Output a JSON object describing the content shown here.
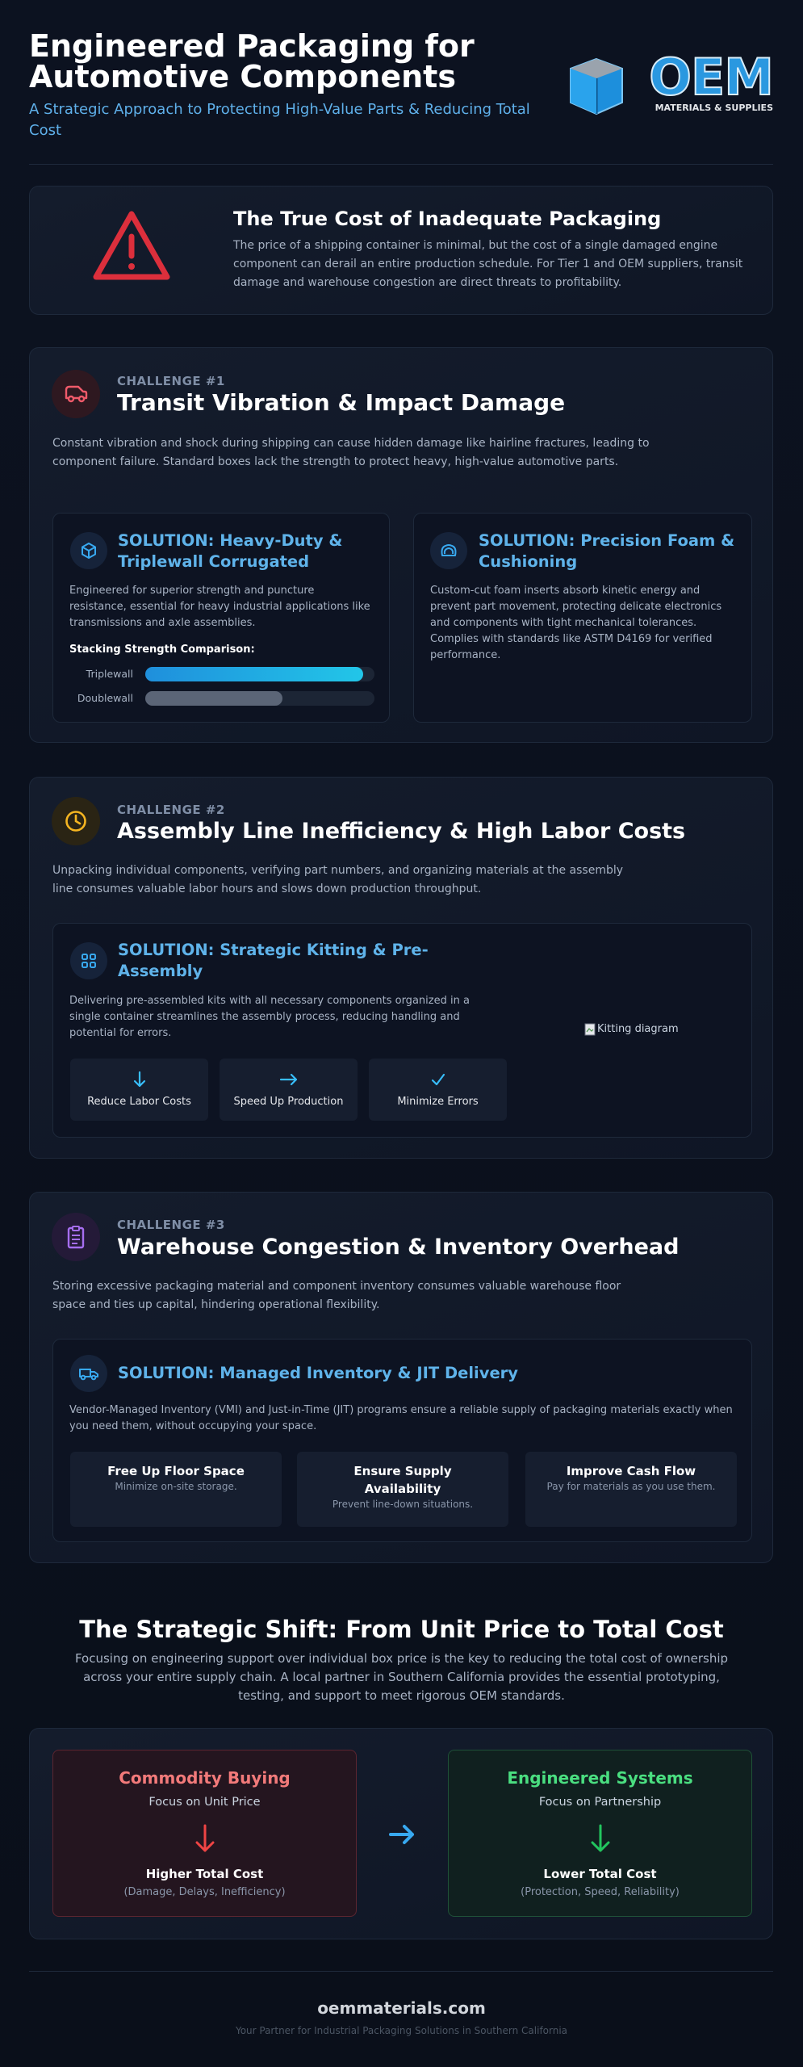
{
  "header": {
    "title": "Engineered Packaging for Automotive Components",
    "subtitle": "A Strategic Approach to Protecting High-Value Parts & Reducing Total Cost",
    "logo": {
      "name": "OEM",
      "tagline": "MATERIALS & SUPPLIES"
    }
  },
  "intro": {
    "title": "The True Cost of Inadequate Packaging",
    "text": "The price of a shipping container is minimal, but the cost of a single damaged engine component can derail an entire production schedule. For Tier 1 and OEM suppliers, transit damage and warehouse congestion are direct threats to profitability."
  },
  "challenges": [
    {
      "label": "CHALLENGE #1",
      "title": "Transit Vibration & Impact Damage",
      "text": "Constant vibration and shock during shipping can cause hidden damage like hairline fractures, leading to component failure. Standard boxes lack the strength to protect heavy, high-value automotive parts.",
      "solutions": [
        {
          "title": "SOLUTION: Heavy-Duty & Triplewall Corrugated",
          "text": "Engineered for superior strength and puncture resistance, essential for heavy industrial applications like transmissions and axle assemblies.",
          "comparison": {
            "title": "Stacking Strength Comparison:",
            "categories": [
              "Triplewall",
              "Doublewall"
            ],
            "values": [
              95,
              60
            ],
            "xlim": [
              0,
              100
            ]
          }
        },
        {
          "title": "SOLUTION: Precision Foam & Cushioning",
          "text": "Custom-cut foam inserts absorb kinetic energy and prevent part movement, protecting delicate electronics and components with tight mechanical tolerances. Complies with standards like ASTM D4169 for verified performance."
        }
      ]
    },
    {
      "label": "CHALLENGE #2",
      "title": "Assembly Line Inefficiency & High Labor Costs",
      "text": "Unpacking individual components, verifying part numbers, and organizing materials at the assembly line consumes valuable labor hours and slows down production throughput.",
      "solutions": [
        {
          "title": "SOLUTION: Strategic Kitting & Pre-Assembly",
          "text": "Delivering pre-assembled kits with all necessary components organized in a single container streamlines the assembly process, reducing handling and potential for errors.",
          "benefits": [
            "Reduce Labor Costs",
            "Speed Up Production",
            "Minimize Errors"
          ],
          "image_alt": "Kitting diagram"
        }
      ]
    },
    {
      "label": "CHALLENGE #3",
      "title": "Warehouse Congestion & Inventory Overhead",
      "text": "Storing excessive packaging material and component inventory consumes valuable warehouse floor space and ties up capital, hindering operational flexibility.",
      "solutions": [
        {
          "title": "SOLUTION: Managed Inventory & JIT Delivery",
          "text": "Vendor-Managed Inventory (VMI) and Just-in-Time (JIT) programs ensure a reliable supply of packaging materials exactly when you need them, without occupying your space.",
          "benefits": [
            {
              "title": "Free Up Floor Space",
              "text": "Minimize on-site storage."
            },
            {
              "title": "Ensure Supply Availability",
              "text": "Prevent line-down situations."
            },
            {
              "title": "Improve Cash Flow",
              "text": "Pay for materials as you use them."
            }
          ]
        }
      ]
    }
  ],
  "shift": {
    "title": "The Strategic Shift: From Unit Price to Total Cost",
    "text": "Focusing on engineering support over individual box price is the key to reducing the total cost of ownership across your entire supply chain. A local partner in Southern California provides the essential prototyping, testing, and support to meet rigorous OEM standards.",
    "comparison": [
      {
        "title": "Commodity Buying",
        "focus": "Focus on Unit Price",
        "result": "Higher Total Cost",
        "detail": "(Damage, Delays, Inefficiency)"
      },
      {
        "title": "Engineered Systems",
        "focus": "Focus on Partnership",
        "result": "Lower Total Cost",
        "detail": "(Protection, Speed, Reliability)"
      }
    ]
  },
  "footer": {
    "site": "oemmaterials.com",
    "tagline": "Your Partner for Industrial Packaging Solutions in Southern California"
  }
}
